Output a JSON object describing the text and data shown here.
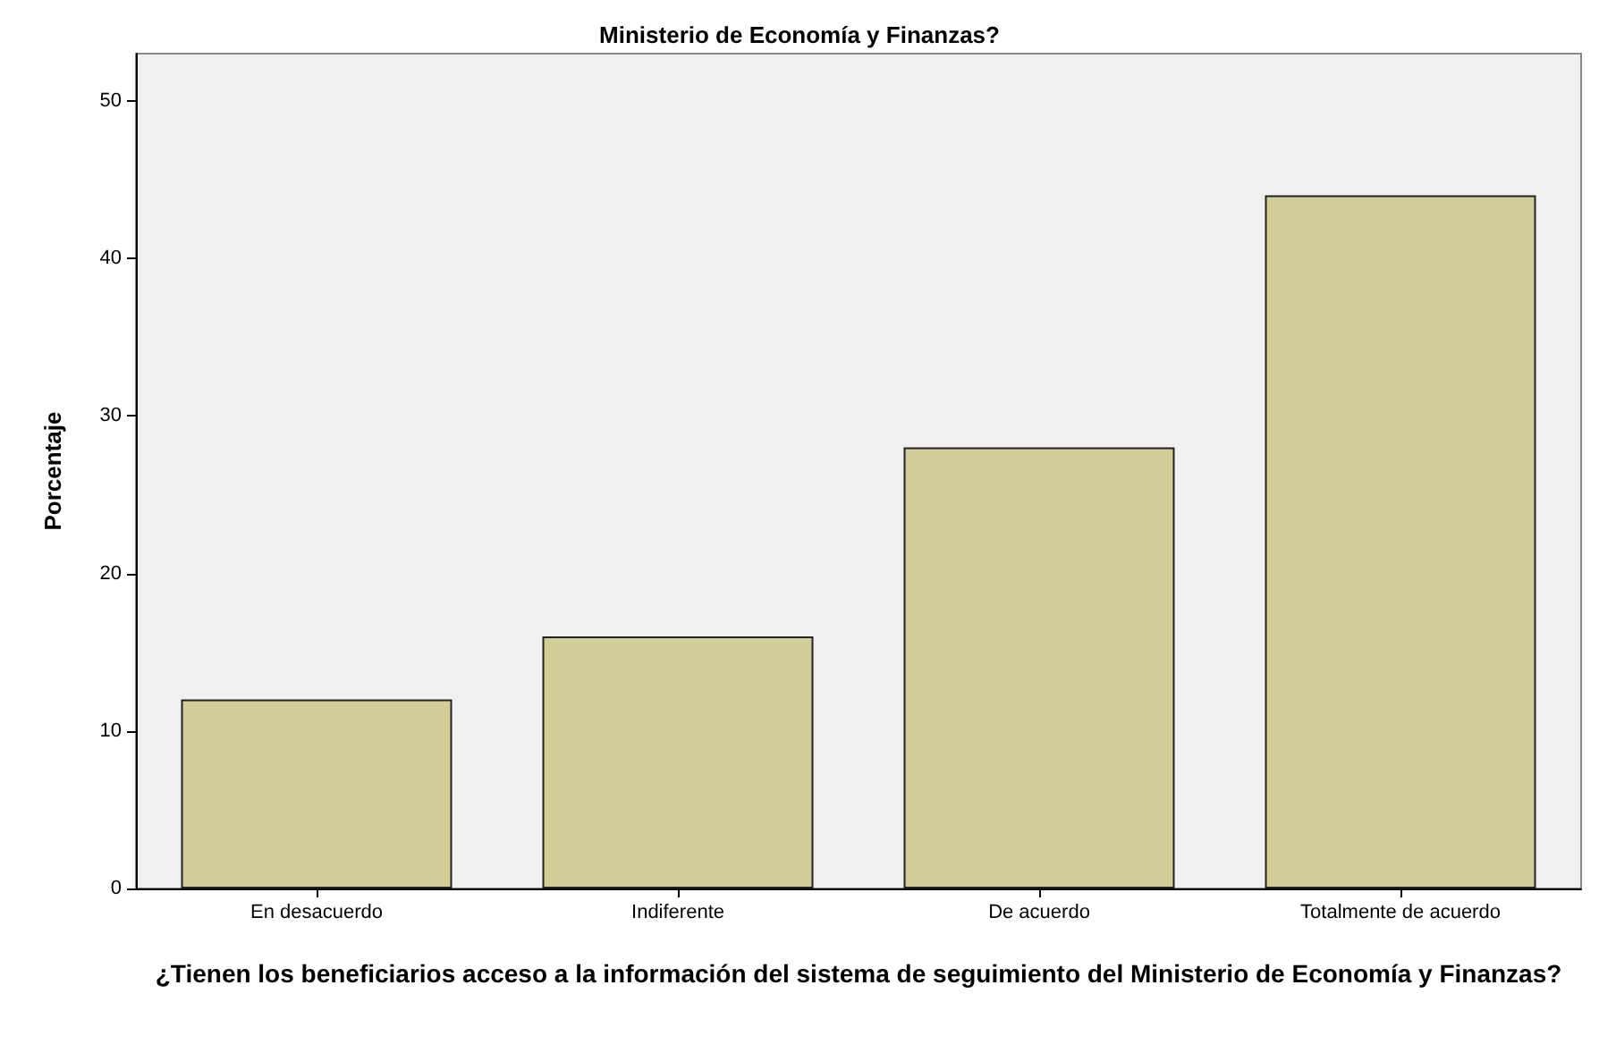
{
  "chart_data": {
    "type": "bar",
    "title": "Ministerio de Economía y Finanzas?",
    "xlabel": "¿Tienen los beneficiarios acceso a la información del sistema de seguimiento del Ministerio de Economía y Finanzas?",
    "ylabel": "Porcentaje",
    "categories": [
      "En desacuerdo",
      "Indiferente",
      "De acuerdo",
      "Totalmente de acuerdo"
    ],
    "values": [
      12,
      16,
      28,
      44
    ],
    "color": "#d3cd98",
    "ylim": [
      0,
      53
    ],
    "yticks": [
      0,
      10,
      20,
      30,
      40,
      50
    ],
    "grid": false
  }
}
